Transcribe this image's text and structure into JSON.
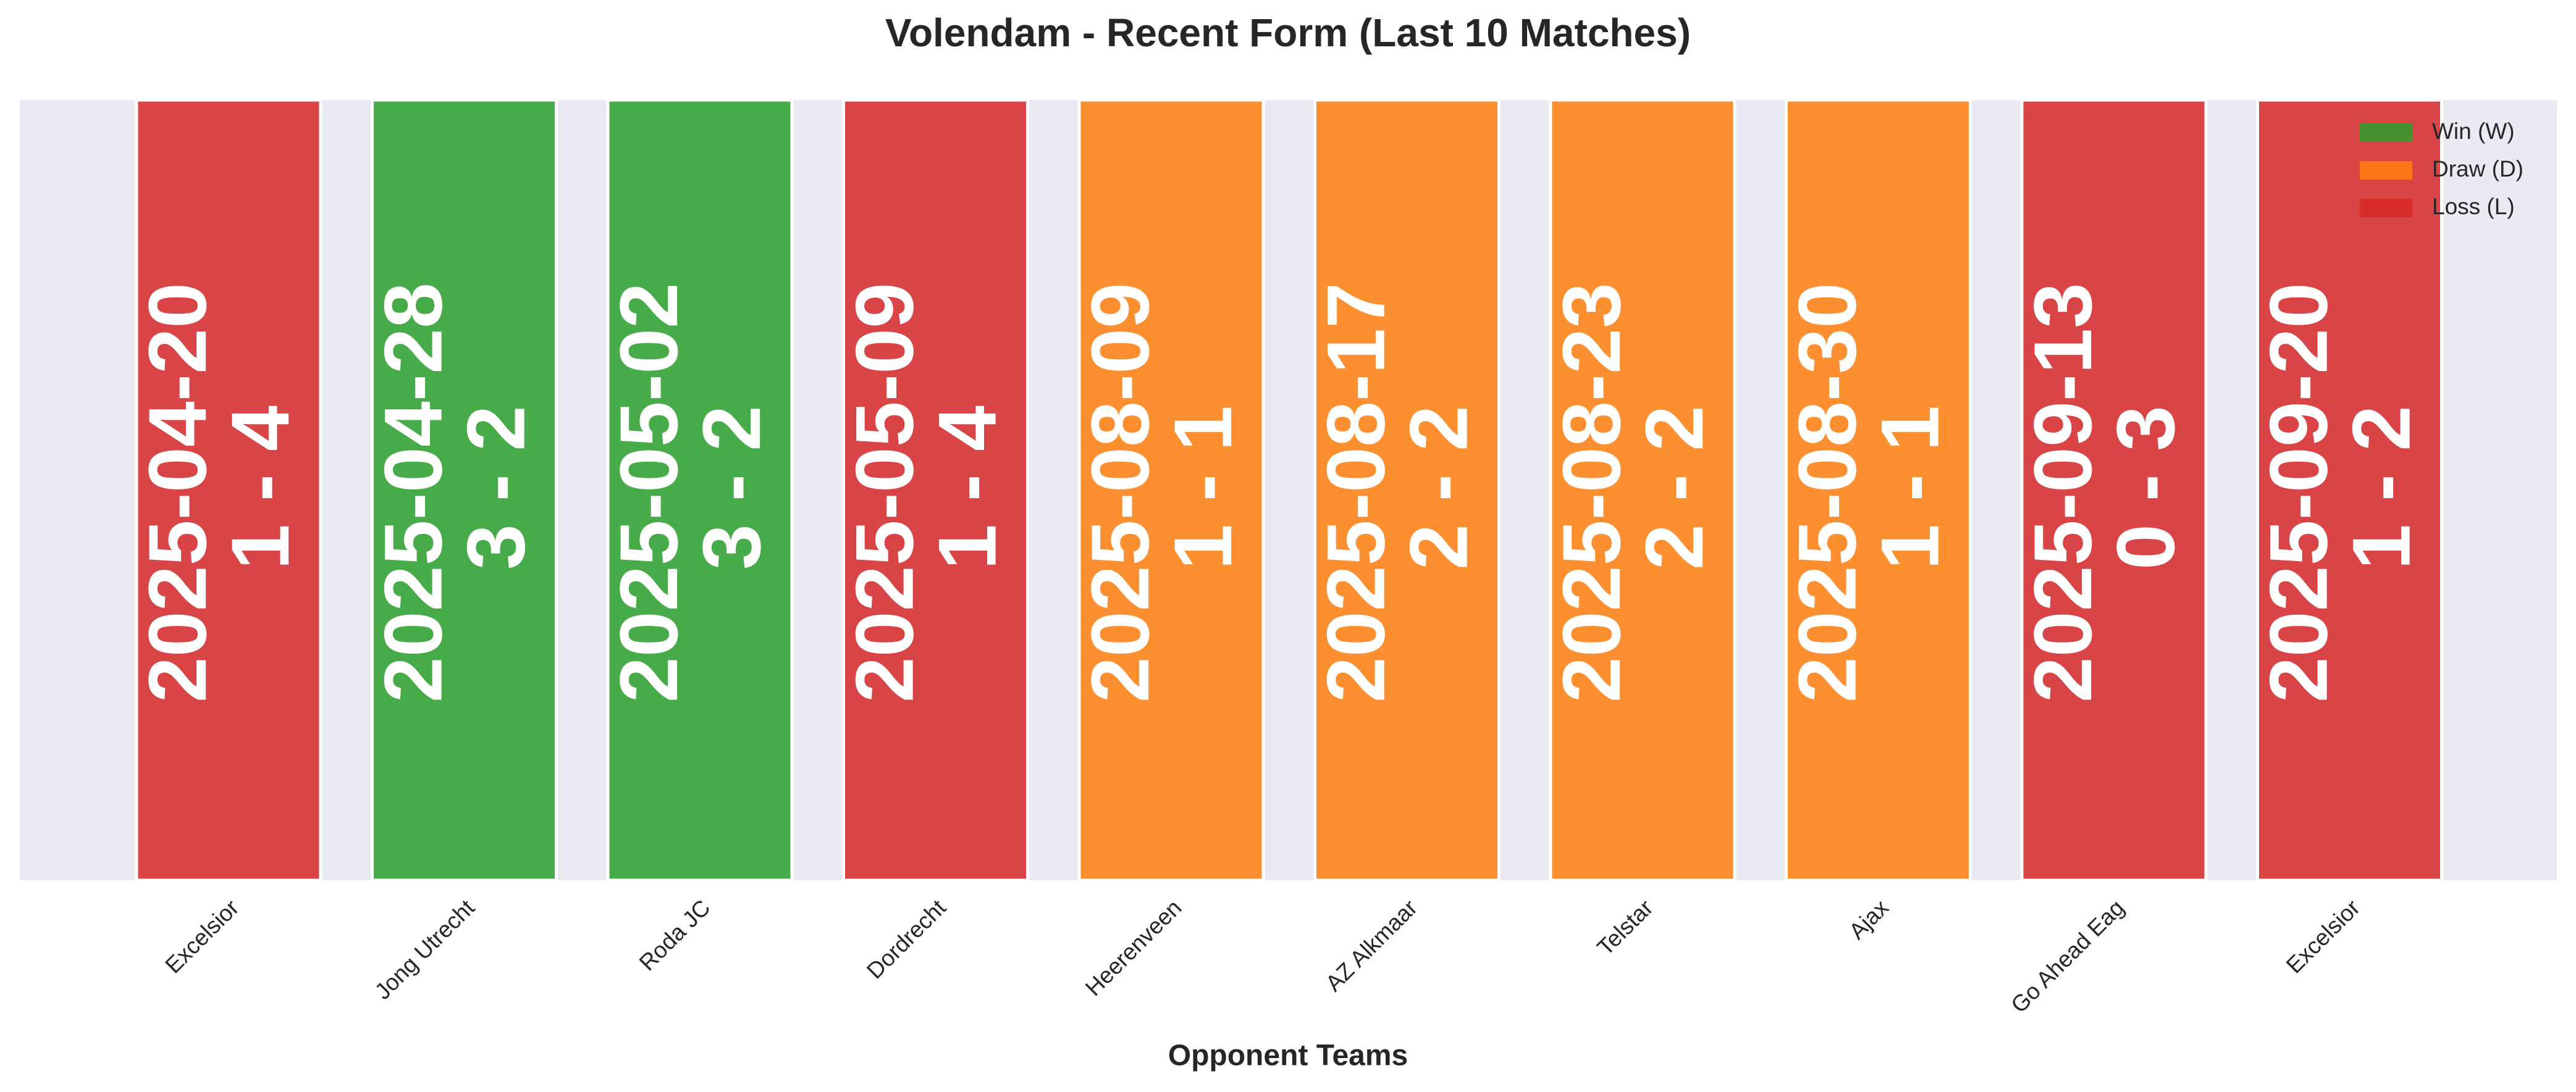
{
  "chart_data": {
    "type": "form",
    "title": "Volendam - Recent Form (Last 10 Matches)",
    "xlabel": "Opponent Teams",
    "categories": [
      "Excelsior",
      "Jong Utrecht",
      "Roda JC",
      "Dordrecht",
      "Heerenveen",
      "AZ Alkmaar",
      "Telstar",
      "Ajax",
      "Go Ahead Eag",
      "Excelsior"
    ],
    "dates": [
      "2025-04-20",
      "2025-04-28",
      "2025-05-02",
      "2025-05-09",
      "2025-08-09",
      "2025-08-17",
      "2025-08-23",
      "2025-08-30",
      "2025-09-13",
      "2025-09-20"
    ],
    "scores": [
      "1 - 4",
      "3 - 2",
      "3 - 2",
      "1 - 4",
      "1 - 1",
      "2 - 2",
      "2 - 2",
      "1 - 1",
      "0 - 3",
      "1 - 2"
    ],
    "colors": [
      "#d62728",
      "#2ca02c",
      "#2ca02c",
      "#d62728",
      "#ff7f0e",
      "#ff7f0e",
      "#ff7f0e",
      "#ff7f0e",
      "#d62728",
      "#d62728"
    ],
    "legend": [
      {
        "name": "Win (W)",
        "color": "#2ca02c"
      },
      {
        "name": "Draw (D)",
        "color": "#ff7f0e"
      },
      {
        "name": "Loss (L)",
        "color": "#d62728"
      }
    ],
    "legend_position": "upper right"
  }
}
